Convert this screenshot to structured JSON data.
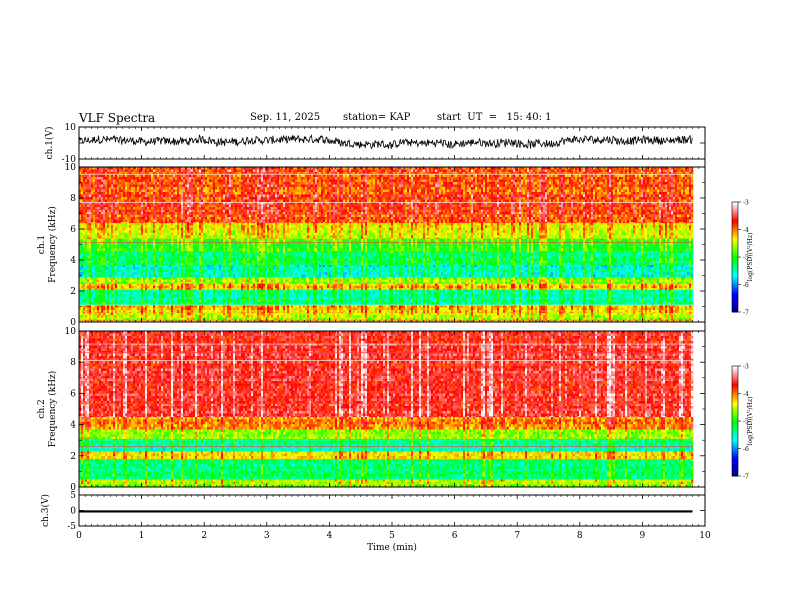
{
  "header": {
    "title": "VLF Spectra",
    "date": "Sep. 11, 2025",
    "station": "station= KAP",
    "start": "start  UT  =   15: 40: 1"
  },
  "chart_data": [
    {
      "type": "line",
      "panel": "ch1-waveform",
      "ylabel": "ch.1(V)",
      "ylim": [
        -10,
        10
      ],
      "yticks": [
        "10",
        "-10"
      ],
      "xlim": [
        0,
        10
      ],
      "data_end_min": 9.8,
      "series": [
        {
          "name": "ch.1",
          "approx_range_V": [
            -3,
            4
          ]
        }
      ]
    },
    {
      "type": "heatmap",
      "panel": "ch1-spectrogram",
      "ylabel_line1": "ch.1",
      "ylabel_line2": "Frequency  (kHz)",
      "ylim": [
        0,
        10
      ],
      "yticks": [
        "0",
        "2",
        "4",
        "6",
        "8",
        "10"
      ],
      "xlim": [
        0,
        10
      ],
      "data_end_min": 9.8,
      "bands": [
        {
          "from_khz": 0.0,
          "to_khz": 0.6,
          "level": -4.6
        },
        {
          "from_khz": 0.6,
          "to_khz": 1.1,
          "level": -4.3
        },
        {
          "from_khz": 1.1,
          "to_khz": 2.1,
          "level": -5.4
        },
        {
          "from_khz": 2.1,
          "to_khz": 2.5,
          "level": -4.3
        },
        {
          "from_khz": 2.5,
          "to_khz": 2.9,
          "level": -4.7
        },
        {
          "from_khz": 2.9,
          "to_khz": 3.7,
          "level": -5.6
        },
        {
          "from_khz": 3.7,
          "to_khz": 4.6,
          "level": -5.3
        },
        {
          "from_khz": 4.6,
          "to_khz": 5.4,
          "level": -5.0
        },
        {
          "from_khz": 5.4,
          "to_khz": 6.4,
          "level": -4.5
        },
        {
          "from_khz": 6.4,
          "to_khz": 10.0,
          "level": -3.9
        }
      ],
      "colorbar": {
        "range": [
          -7,
          -3
        ],
        "ticks": [
          "-3",
          "-4",
          "-5",
          "-6",
          "-7"
        ],
        "label": "log(PSD)(V²/Hz)"
      }
    },
    {
      "type": "heatmap",
      "panel": "ch2-spectrogram",
      "ylabel_line1": "ch.2",
      "ylabel_line2": "Frequency  (kHz)",
      "ylim": [
        0,
        10
      ],
      "yticks": [
        "0",
        "2",
        "4",
        "6",
        "8",
        "10"
      ],
      "xlim": [
        0,
        10
      ],
      "data_end_min": 9.8,
      "bands": [
        {
          "from_khz": 0.0,
          "to_khz": 0.5,
          "level": -4.6
        },
        {
          "from_khz": 0.5,
          "to_khz": 1.8,
          "level": -5.3
        },
        {
          "from_khz": 1.8,
          "to_khz": 2.3,
          "level": -4.3
        },
        {
          "from_khz": 2.3,
          "to_khz": 3.1,
          "level": -5.4
        },
        {
          "from_khz": 3.1,
          "to_khz": 3.7,
          "level": -4.6
        },
        {
          "from_khz": 3.7,
          "to_khz": 4.5,
          "level": -4.1
        },
        {
          "from_khz": 4.5,
          "to_khz": 10.0,
          "level": -3.6
        }
      ],
      "colorbar": {
        "range": [
          -7,
          -3
        ],
        "ticks": [
          "-3",
          "-4",
          "-5",
          "-6",
          "-7"
        ],
        "label": "log(PSD)(V²/Hz)"
      }
    },
    {
      "type": "line",
      "panel": "ch3-waveform",
      "ylabel": "ch.3(V)",
      "ylim": [
        -5,
        5
      ],
      "yticks": [
        "5",
        "0",
        "-5"
      ],
      "xlim": [
        0,
        10
      ],
      "data_end_min": 9.8,
      "series": [
        {
          "name": "ch.3",
          "approx_level_V": -0.3
        }
      ]
    }
  ],
  "xaxis": {
    "label": "Time  (min)",
    "ticks": [
      "0",
      "1",
      "2",
      "3",
      "4",
      "5",
      "6",
      "7",
      "8",
      "9",
      "10"
    ]
  },
  "colors": {
    "stops": [
      "#00007f",
      "#0000ff",
      "#00ffff",
      "#00ff00",
      "#ffff00",
      "#ff0000",
      "#ffffff"
    ]
  }
}
